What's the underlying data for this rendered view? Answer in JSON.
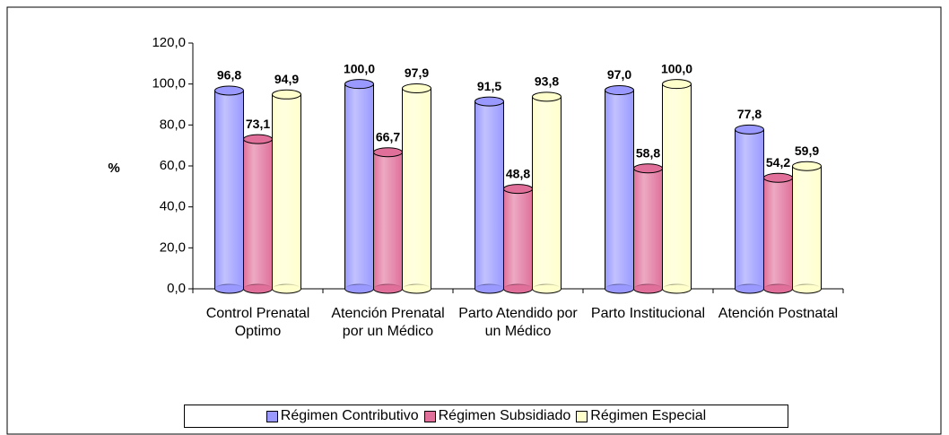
{
  "chart_data": {
    "type": "bar",
    "categories": [
      "Control Prenatal Optimo",
      "Atención Prenatal por un Médico",
      "Parto Atendido por un Médico",
      "Parto Institucional",
      "Atención Postnatal"
    ],
    "series": [
      {
        "name": "Régimen Contributivo",
        "color": "#9999ff",
        "values": [
          96.8,
          100.0,
          91.5,
          97.0,
          77.8
        ],
        "value_labels": [
          "96,8",
          "100,0",
          "91,5",
          "97,0",
          "77,8"
        ]
      },
      {
        "name": "Régimen Subsidiado",
        "color": "#e0709a",
        "values": [
          73.1,
          66.7,
          48.8,
          58.8,
          54.2
        ],
        "value_labels": [
          "73,1",
          "66,7",
          "48,8",
          "58,8",
          "54,2"
        ]
      },
      {
        "name": "Régimen Especial",
        "color": "#ffffcc",
        "values": [
          94.9,
          97.9,
          93.8,
          100.0,
          59.9
        ],
        "value_labels": [
          "94,9",
          "97,9",
          "93,8",
          "100,0",
          "59,9"
        ]
      }
    ],
    "y_label": "%",
    "ylim": [
      0,
      120
    ],
    "yticks": [
      {
        "value": 0,
        "label": "0,0"
      },
      {
        "value": 20,
        "label": "20,0"
      },
      {
        "value": 40,
        "label": "40,0"
      },
      {
        "value": 60,
        "label": "60,0"
      },
      {
        "value": 80,
        "label": "80,0"
      },
      {
        "value": 100,
        "label": "100,0"
      },
      {
        "value": 120,
        "label": "120,0"
      }
    ],
    "legend": "bottom"
  }
}
